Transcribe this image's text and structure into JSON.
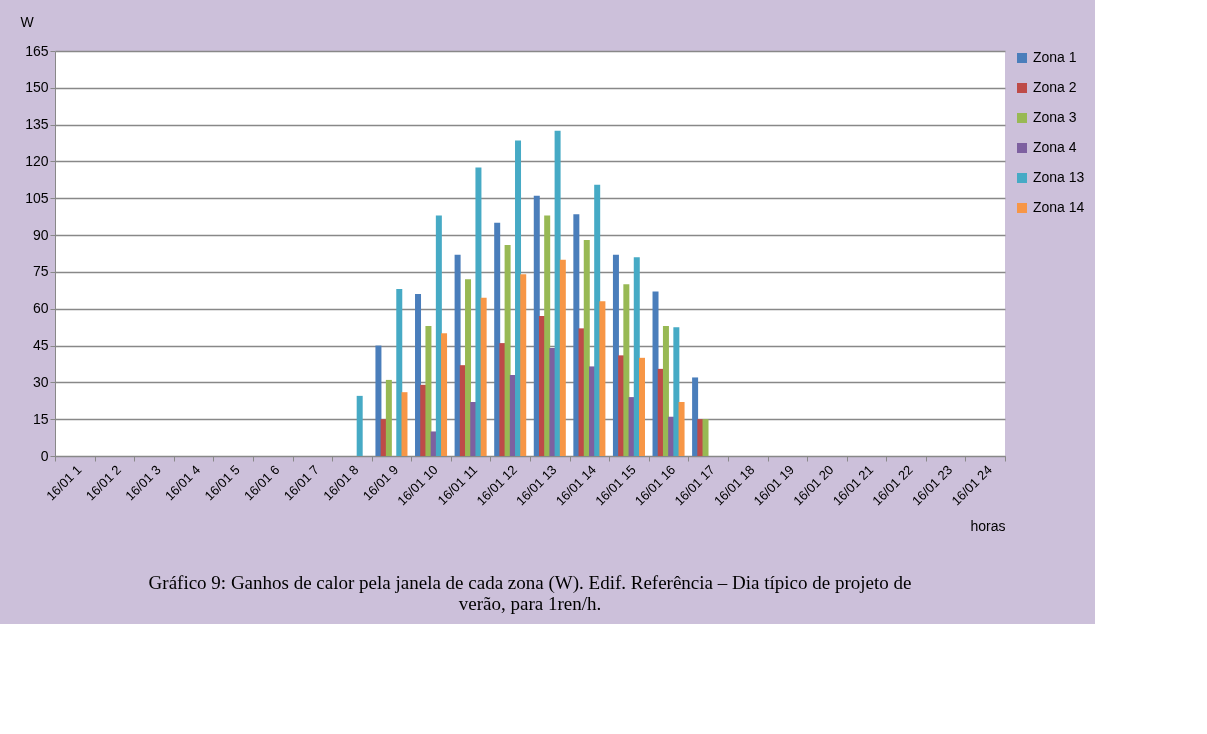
{
  "chart_data": {
    "type": "bar",
    "ylabel": "W",
    "xlabel": "horas",
    "categories": [
      "16/01 1",
      "16/01 2",
      "16/01 3",
      "16/01 4",
      "16/01 5",
      "16/01 6",
      "16/01 7",
      "16/01 8",
      "16/01 9",
      "16/01 10",
      "16/01 11",
      "16/01 12",
      "16/01 13",
      "16/01 14",
      "16/01 15",
      "16/01 16",
      "16/01 17",
      "16/01 18",
      "16/01 19",
      "16/01 20",
      "16/01 21",
      "16/01 22",
      "16/01 23",
      "16/01 24"
    ],
    "series": [
      {
        "name": "Zona 1",
        "color": "#4a7ebb",
        "values": [
          null,
          null,
          null,
          null,
          null,
          null,
          null,
          null,
          45,
          66,
          82,
          95,
          106,
          98.5,
          82,
          67,
          32,
          null,
          null,
          null,
          null,
          null,
          null,
          null
        ]
      },
      {
        "name": "Zona 2",
        "color": "#be4b48",
        "values": [
          null,
          null,
          null,
          null,
          null,
          null,
          null,
          null,
          15,
          29,
          37,
          46,
          57,
          52,
          41,
          35.5,
          15,
          null,
          null,
          null,
          null,
          null,
          null,
          null
        ]
      },
      {
        "name": "Zona 3",
        "color": "#98b954",
        "values": [
          null,
          null,
          null,
          null,
          null,
          null,
          null,
          null,
          31,
          53,
          72,
          86,
          98,
          88,
          70,
          53,
          15,
          null,
          null,
          null,
          null,
          null,
          null,
          null
        ]
      },
      {
        "name": "Zona 4",
        "color": "#7d60a0",
        "values": [
          null,
          null,
          null,
          null,
          null,
          null,
          null,
          null,
          null,
          10,
          22,
          33,
          44,
          36.5,
          24,
          16,
          null,
          null,
          null,
          null,
          null,
          null,
          null,
          null
        ]
      },
      {
        "name": "Zona 13",
        "color": "#46aac5",
        "values": [
          null,
          null,
          null,
          null,
          null,
          null,
          null,
          24.5,
          68,
          98,
          117.5,
          128.5,
          132.5,
          110.5,
          81,
          52.5,
          null,
          null,
          null,
          null,
          null,
          null,
          null,
          null
        ]
      },
      {
        "name": "Zona 14",
        "color": "#f79646",
        "values": [
          null,
          null,
          null,
          null,
          null,
          null,
          null,
          null,
          26,
          50,
          64.5,
          74,
          80,
          63,
          40,
          22,
          null,
          null,
          null,
          null,
          null,
          null,
          null,
          null
        ]
      }
    ],
    "ylim": [
      0,
      165
    ],
    "yticks": [
      0,
      15,
      30,
      45,
      60,
      75,
      90,
      105,
      120,
      135,
      150,
      165
    ],
    "grid": "y",
    "legend": "right",
    "annotations": [
      "Gráfico 9: Ganhos de calor pela janela de cada zona (W). Edif. Referência – Dia típico de projeto de verão, para 1ren/h."
    ]
  }
}
